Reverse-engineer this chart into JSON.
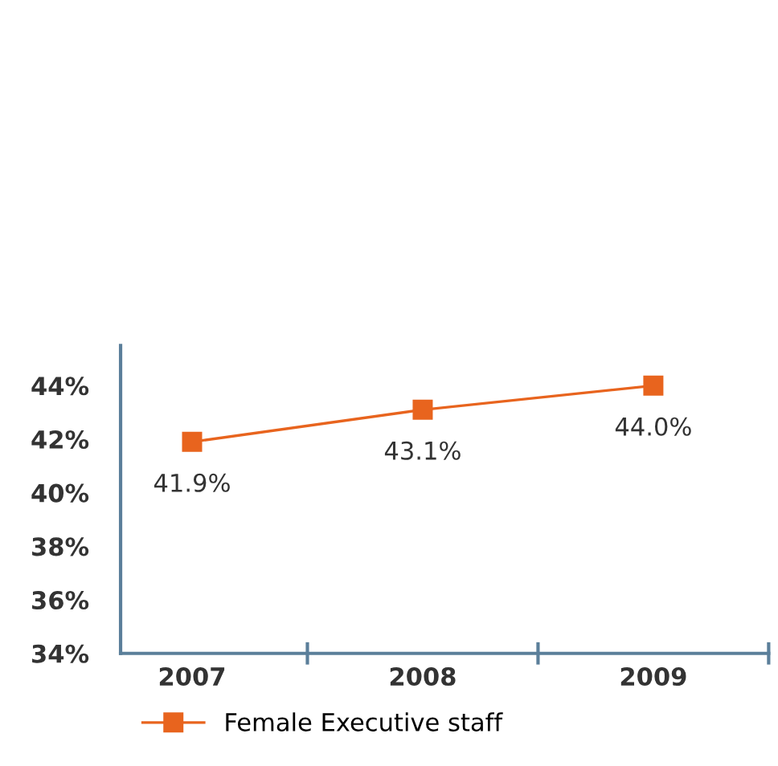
{
  "chart_data": {
    "type": "line",
    "categories": [
      "2007",
      "2008",
      "2009"
    ],
    "series": [
      {
        "name": "Female Executive staff",
        "color": "#e8641e",
        "values": [
          41.9,
          43.1,
          44.0
        ],
        "value_labels": [
          "41.9%",
          "43.1%",
          "44.0%"
        ]
      }
    ],
    "ylim": [
      34,
      45.5
    ],
    "yticks": [
      {
        "value": 34,
        "label": "34%"
      },
      {
        "value": 36,
        "label": "36%"
      },
      {
        "value": 38,
        "label": "38%"
      },
      {
        "value": 40,
        "label": "40%"
      },
      {
        "value": 42,
        "label": "42%"
      },
      {
        "value": 44,
        "label": "44%"
      }
    ],
    "marker": "square",
    "line_style": "solid",
    "grid": false,
    "legend": "bottom left"
  }
}
